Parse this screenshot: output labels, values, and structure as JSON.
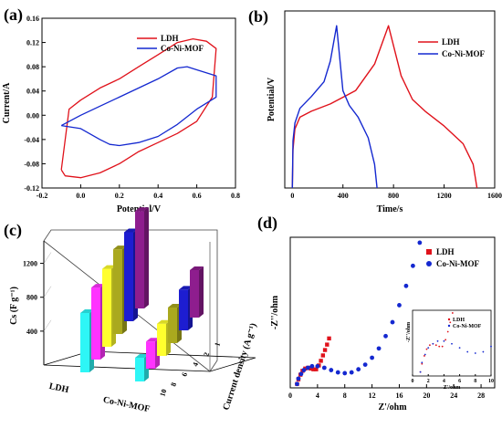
{
  "colors": {
    "ldh": "#e0121b",
    "comof": "#1428d0"
  },
  "panels": {
    "a": "(a)",
    "b": "(b)",
    "c": "(c)",
    "d": "(d)"
  },
  "chart_data": [
    {
      "id": "a",
      "type": "line",
      "xlabel": "Potential/V",
      "ylabel": "Current/A",
      "xlim": [
        -0.2,
        0.8
      ],
      "ylim": [
        -0.12,
        0.16
      ],
      "xticks": [
        "-0.2",
        "0.0",
        "0.2",
        "0.4",
        "0.6",
        "0.8"
      ],
      "yticks": [
        "-0.12",
        "-0.08",
        "-0.04",
        "0.00",
        "0.04",
        "0.08",
        "0.12",
        "0.16"
      ],
      "legend": [
        "LDH",
        "Co-Ni-MOF"
      ],
      "series": [
        {
          "name": "LDH",
          "color": "#e0121b",
          "x": [
            -0.1,
            -0.08,
            0.0,
            0.1,
            0.2,
            0.3,
            0.4,
            0.5,
            0.6,
            0.68,
            0.7,
            0.65,
            0.58,
            0.5,
            0.4,
            0.3,
            0.2,
            0.1,
            0.0,
            -0.06,
            -0.1
          ],
          "y": [
            -0.09,
            -0.1,
            -0.103,
            -0.095,
            -0.08,
            -0.06,
            -0.045,
            -0.03,
            -0.01,
            0.03,
            0.11,
            0.122,
            0.126,
            0.12,
            0.1,
            0.08,
            0.06,
            0.045,
            0.025,
            0.01,
            -0.09
          ]
        },
        {
          "name": "Co-Ni-MOF",
          "color": "#1428d0",
          "x": [
            -0.1,
            0.0,
            0.1,
            0.15,
            0.2,
            0.3,
            0.4,
            0.5,
            0.6,
            0.7,
            0.7,
            0.6,
            0.55,
            0.5,
            0.4,
            0.3,
            0.2,
            0.1,
            0.0,
            -0.1
          ],
          "y": [
            -0.017,
            -0.022,
            -0.04,
            -0.048,
            -0.05,
            -0.045,
            -0.035,
            -0.015,
            0.01,
            0.03,
            0.065,
            0.075,
            0.08,
            0.078,
            0.06,
            0.045,
            0.03,
            0.015,
            0.0,
            -0.017
          ]
        }
      ]
    },
    {
      "id": "b",
      "type": "line",
      "xlabel": "Time/s",
      "ylabel": "Potential/V",
      "xlim": [
        -60,
        1600
      ],
      "ylim": [
        0,
        0.6
      ],
      "xticks": [
        "0",
        "400",
        "800",
        "1200",
        "1600"
      ],
      "legend": [
        "LDH",
        "Co-Ni-MOF"
      ],
      "series": [
        {
          "name": "LDH",
          "color": "#e0121b",
          "x": [
            0,
            5,
            20,
            60,
            150,
            300,
            500,
            650,
            760,
            860,
            950,
            1050,
            1200,
            1350,
            1430,
            1460
          ],
          "y": [
            0,
            0.13,
            0.2,
            0.24,
            0.26,
            0.285,
            0.33,
            0.42,
            0.55,
            0.38,
            0.3,
            0.26,
            0.21,
            0.15,
            0.08,
            0.0
          ]
        },
        {
          "name": "Co-Ni-MOF",
          "color": "#1428d0",
          "x": [
            0,
            5,
            20,
            60,
            150,
            250,
            300,
            350,
            400,
            450,
            520,
            600,
            650,
            670
          ],
          "y": [
            0,
            0.16,
            0.22,
            0.27,
            0.31,
            0.36,
            0.43,
            0.55,
            0.33,
            0.28,
            0.24,
            0.17,
            0.08,
            0.0
          ]
        }
      ]
    },
    {
      "id": "c",
      "type": "bar",
      "ylabel": "Cs (F g⁻¹)",
      "zlabel": "Current density (A g⁻¹)",
      "yticks": [
        "400",
        "800",
        "1200"
      ],
      "groups": [
        "LDH",
        "Co-Ni-MOF"
      ],
      "current_densities": [
        "10",
        "8",
        "6",
        "4",
        "2",
        "1"
      ],
      "bar_colors": [
        "#2ef6f6",
        "#ff33ff",
        "#ffff2e",
        "#aaa91e",
        "#1d1dd1",
        "#8e1d8e"
      ],
      "series": [
        {
          "name": "LDH",
          "values": [
            700,
            850,
            920,
            1000,
            1050,
            1150
          ]
        },
        {
          "name": "Co-Ni-MOF",
          "values": [
            280,
            320,
            380,
            420,
            480,
            560
          ]
        }
      ]
    },
    {
      "id": "d",
      "type": "scatter",
      "xlabel": "Z'/ohm",
      "ylabel": "-Z''/ohm",
      "xlim": [
        0,
        30
      ],
      "ylim": [
        -0.5,
        19
      ],
      "xticks": [
        "0",
        "4",
        "8",
        "12",
        "16",
        "20",
        "24",
        "28"
      ],
      "legend": [
        "LDH",
        "Co-Ni-MOF"
      ],
      "series": [
        {
          "name": "LDH",
          "color": "#e0121b",
          "marker": "square",
          "x": [
            1.0,
            1.2,
            1.5,
            1.8,
            2.2,
            2.6,
            3.0,
            3.4,
            3.8,
            4.2,
            4.5,
            4.8,
            5.1,
            5.4,
            5.7
          ],
          "y": [
            0.0,
            0.6,
            1.2,
            1.7,
            2.0,
            2.1,
            2.0,
            1.9,
            1.9,
            2.4,
            3.0,
            3.7,
            4.4,
            5.1,
            5.9
          ]
        },
        {
          "name": "Co-Ni-MOF",
          "color": "#1428d0",
          "marker": "circle",
          "x": [
            1.0,
            1.2,
            1.6,
            2.0,
            2.6,
            3.2,
            4.0,
            5.0,
            6.0,
            7.0,
            8.0,
            9.0,
            10.0,
            11.0,
            12.0,
            13.0,
            14.0,
            15.0,
            16.0,
            17.0,
            18.0,
            19.0
          ],
          "y": [
            0.0,
            0.7,
            1.3,
            1.8,
            2.1,
            2.3,
            2.3,
            2.1,
            1.8,
            1.5,
            1.4,
            1.5,
            1.9,
            2.5,
            3.4,
            4.6,
            6.2,
            8.0,
            10.2,
            12.7,
            15.3,
            18.3
          ]
        }
      ],
      "inset": {
        "xlabel": "Z'/ohm",
        "ylabel": "-Z''/ohm",
        "xticks": [
          "0",
          "2",
          "4",
          "6",
          "8",
          "10"
        ],
        "xlim": [
          0,
          10
        ],
        "ylim": [
          -0.3,
          4.6
        ],
        "legend": [
          "LDH",
          "Co-Ni-MOF"
        ]
      }
    }
  ]
}
